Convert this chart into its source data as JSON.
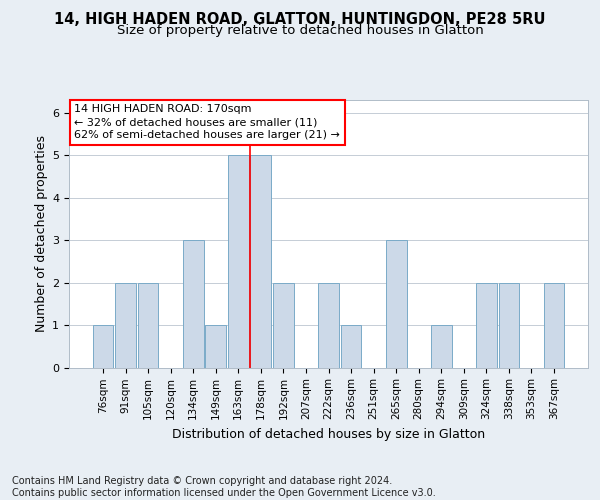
{
  "title_line1": "14, HIGH HADEN ROAD, GLATTON, HUNTINGDON, PE28 5RU",
  "title_line2": "Size of property relative to detached houses in Glatton",
  "xlabel": "Distribution of detached houses by size in Glatton",
  "ylabel": "Number of detached properties",
  "categories": [
    "76sqm",
    "91sqm",
    "105sqm",
    "120sqm",
    "134sqm",
    "149sqm",
    "163sqm",
    "178sqm",
    "192sqm",
    "207sqm",
    "222sqm",
    "236sqm",
    "251sqm",
    "265sqm",
    "280sqm",
    "294sqm",
    "309sqm",
    "324sqm",
    "338sqm",
    "353sqm",
    "367sqm"
  ],
  "values": [
    1,
    2,
    2,
    0,
    3,
    1,
    5,
    5,
    2,
    0,
    2,
    1,
    0,
    3,
    0,
    1,
    0,
    2,
    2,
    0,
    2
  ],
  "bar_color": "#ccd9e8",
  "bar_edge_color": "#7aaac8",
  "annotation_text": "14 HIGH HADEN ROAD: 170sqm\n← 32% of detached houses are smaller (11)\n62% of semi-detached houses are larger (21) →",
  "annotation_box_color": "white",
  "annotation_box_edge_color": "red",
  "ref_line_color": "red",
  "ylim": [
    0,
    6.3
  ],
  "yticks": [
    0,
    1,
    2,
    3,
    4,
    5,
    6
  ],
  "background_color": "#e8eef4",
  "plot_background": "white",
  "footer_line1": "Contains HM Land Registry data © Crown copyright and database right 2024.",
  "footer_line2": "Contains public sector information licensed under the Open Government Licence v3.0.",
  "title_fontsize": 10.5,
  "subtitle_fontsize": 9.5,
  "axis_label_fontsize": 9,
  "tick_fontsize": 7.5,
  "annotation_fontsize": 8,
  "footer_fontsize": 7
}
